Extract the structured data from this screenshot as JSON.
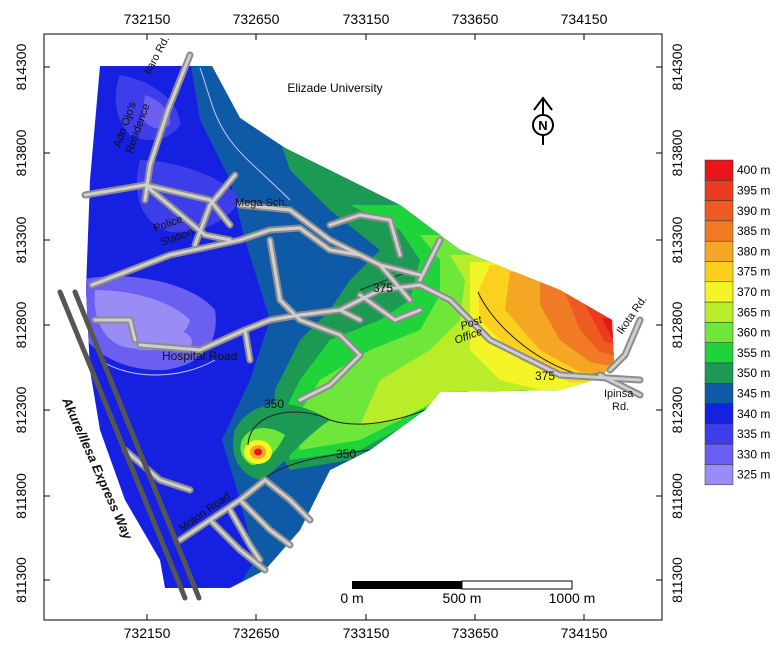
{
  "map": {
    "title": "Elizade University",
    "x_ticks": [
      "732150",
      "732650",
      "733150",
      "733650",
      "734150"
    ],
    "y_ticks": [
      "814300",
      "813800",
      "813300",
      "812800",
      "812300",
      "811800",
      "811300"
    ],
    "north_letter": "N",
    "roads": {
      "ilaro": "Ilaro Rd.",
      "ado_ojo": "Ado Ojo's",
      "residence": "Residence",
      "mega_sch": "Mega Sch.",
      "police": "Police",
      "station": "Station",
      "hospital": "Hospital Road",
      "post": "Post",
      "office": "Office",
      "ikota": "Ikota Rd.",
      "ipinsa": "Ipinsa",
      "ipinsa_rd": "Rd.",
      "mosque": "Moton Road",
      "expressway": "Akure/Ilesa Express Way"
    },
    "contour_labels": [
      "350",
      "350",
      "375",
      "375"
    ],
    "scale": {
      "s0": "0 m",
      "s500": "500 m",
      "s1000": "1000 m"
    },
    "legend": [
      {
        "label": "400 m",
        "color": "#e8151b"
      },
      {
        "label": "395 m",
        "color": "#ea3b1e"
      },
      {
        "label": "390 m",
        "color": "#ee5b22"
      },
      {
        "label": "385 m",
        "color": "#f17a25"
      },
      {
        "label": "380 m",
        "color": "#f5a623"
      },
      {
        "label": "375 m",
        "color": "#fbd01f"
      },
      {
        "label": "370 m",
        "color": "#f3f526"
      },
      {
        "label": "365 m",
        "color": "#b9ed2a"
      },
      {
        "label": "360 m",
        "color": "#6ee63a"
      },
      {
        "label": "355 m",
        "color": "#1fd43a"
      },
      {
        "label": "350 m",
        "color": "#1c9a54"
      },
      {
        "label": "345 m",
        "color": "#0f5aa6"
      },
      {
        "label": "340 m",
        "color": "#1520e0"
      },
      {
        "label": "335 m",
        "color": "#3d3ee9"
      },
      {
        "label": "330 m",
        "color": "#6a5ff0"
      },
      {
        "label": "325 m",
        "color": "#9a8cf5"
      }
    ]
  }
}
